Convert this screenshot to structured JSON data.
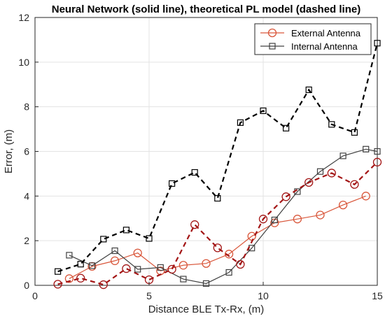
{
  "chart_data": {
    "type": "line",
    "title": "Neural Network (solid line), theoretical PL model (dashed line)",
    "xlabel": "Distance BLE Tx-Rx, (m)",
    "ylabel": "Error, (m)",
    "xlim": [
      0,
      15
    ],
    "ylim": [
      0,
      12
    ],
    "xticks": [
      0,
      5,
      10,
      15
    ],
    "yticks": [
      0,
      2,
      4,
      6,
      8,
      10,
      12
    ],
    "grid": true,
    "legend_position": "top-right",
    "series": [
      {
        "name": "External Antenna",
        "model": "Neural Network",
        "line_style": "solid",
        "marker": "circle",
        "color": "#d9573b",
        "x": [
          1.5,
          2.5,
          3.5,
          4.5,
          5.5,
          6.5,
          7.5,
          8.5,
          9.5,
          10.5,
          11.5,
          12.5,
          13.5,
          14.5
        ],
        "y": [
          0.3,
          0.85,
          1.1,
          1.45,
          0.65,
          0.9,
          0.98,
          1.4,
          2.2,
          2.8,
          2.97,
          3.15,
          3.6,
          4.0
        ]
      },
      {
        "name": "Internal Antenna",
        "model": "Neural Network",
        "line_style": "solid",
        "marker": "square",
        "color": "#404040",
        "x": [
          1.5,
          2.5,
          3.5,
          4.5,
          5.5,
          6.5,
          7.5,
          8.5,
          9.5,
          10.5,
          11.5,
          12.5,
          13.5,
          14.5,
          15
        ],
        "y": [
          1.35,
          0.88,
          1.55,
          0.72,
          0.8,
          0.28,
          0.08,
          0.58,
          1.67,
          2.93,
          4.2,
          5.1,
          5.8,
          6.1,
          6.0
        ]
      },
      {
        "name": "",
        "model": "theoretical PL",
        "antenna": "External Antenna",
        "line_style": "dashed",
        "marker": "circle",
        "color": "#a31515",
        "x": [
          1,
          2,
          3,
          4,
          5,
          6,
          7,
          8,
          9,
          10,
          11,
          12,
          13,
          14,
          15
        ],
        "y": [
          0.05,
          0.32,
          0.03,
          0.75,
          0.25,
          0.72,
          2.72,
          1.68,
          0.94,
          2.97,
          3.97,
          4.61,
          5.03,
          4.52,
          5.52
        ]
      },
      {
        "name": "",
        "model": "theoretical PL",
        "antenna": "Internal Antenna",
        "line_style": "dashed",
        "marker": "square",
        "color": "#000000",
        "x": [
          1,
          2,
          3,
          4,
          5,
          6,
          7,
          8,
          9,
          10,
          11,
          12,
          13,
          14,
          15
        ],
        "y": [
          0.62,
          0.95,
          2.07,
          2.48,
          2.1,
          4.56,
          5.06,
          3.9,
          7.29,
          7.82,
          7.04,
          8.76,
          7.21,
          6.85,
          10.85
        ]
      }
    ]
  }
}
